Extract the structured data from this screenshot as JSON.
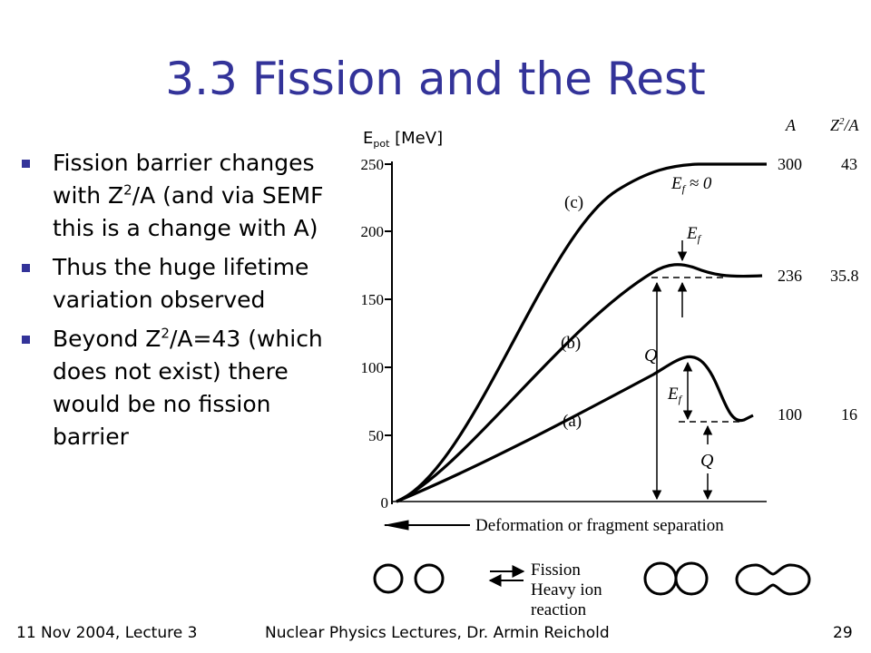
{
  "slide": {
    "title": "3.3 Fission and the Rest",
    "bullets": [
      {
        "p1": "Fission barrier changes with Z",
        "sup": "2",
        "p2": "/A (and via SEMF this is a change with A)"
      },
      {
        "text": "Thus the huge lifetime variation observed"
      },
      {
        "p1": "Beyond Z",
        "sup": "2",
        "p2": "/A=43 (which does not exist) there would be no fission barrier"
      }
    ],
    "footer": {
      "left": "11 Nov 2004, Lecture 3",
      "center": "Nuclear Physics  Lectures, Dr. Armin Reichold",
      "page": "29"
    }
  },
  "figure": {
    "ylabel_main": "E",
    "ylabel_sub": "pot",
    "ylabel_unit": " [MeV]",
    "col_A": "A",
    "col_Z": "Z",
    "col_Z_sup": "2",
    "col_Z_rest": "/A",
    "yticks": [
      "250",
      "200",
      "150",
      "100",
      "50",
      "0"
    ],
    "rows": [
      {
        "A": "300",
        "Z2A": "43"
      },
      {
        "A": "236",
        "Z2A": "35.8"
      },
      {
        "A": "100",
        "Z2A": "16"
      }
    ],
    "curve_labels": [
      "(c)",
      "(b)",
      "(a)"
    ],
    "ef_approx_main": "E",
    "ef_sub": "f",
    "ef_approx_rest": " ≈ 0",
    "q_label": "Q",
    "xaxis_label": "Deformation or fragment separation",
    "legend_line1": "Fission",
    "legend_line2": "Heavy ion",
    "legend_line3": "reaction"
  }
}
